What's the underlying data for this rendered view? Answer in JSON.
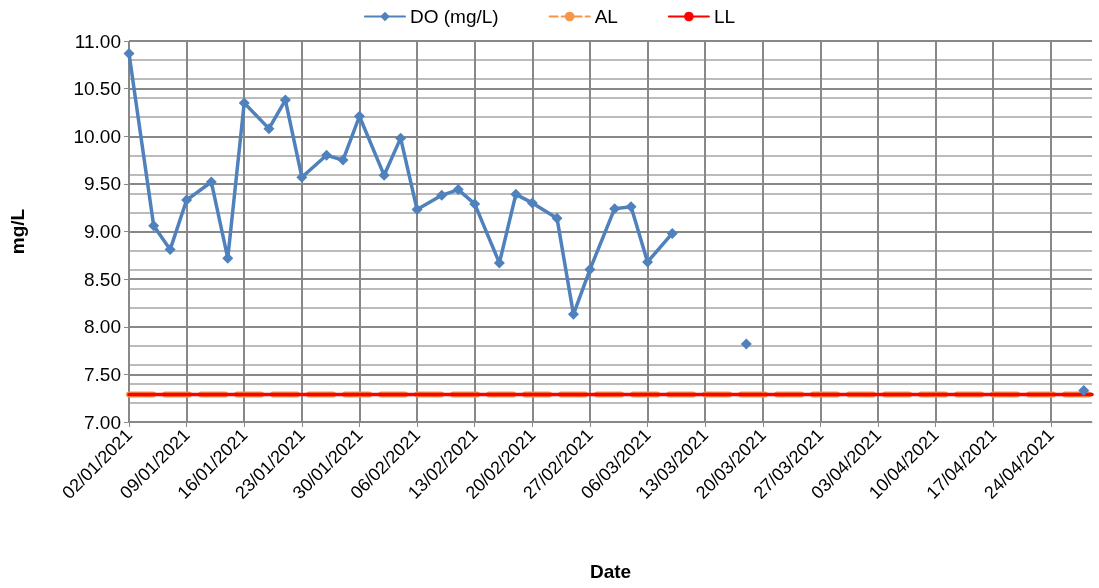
{
  "chart_data": {
    "type": "line",
    "xlabel": "Date",
    "ylabel": "mg/L",
    "legend": "top",
    "grid": true,
    "xlim": [
      "2021-01-02",
      "2021-04-29"
    ],
    "xticks": [
      {
        "value": "2021-01-02",
        "label": "02/01/2021"
      },
      {
        "value": "2021-01-09",
        "label": "09/01/2021"
      },
      {
        "value": "2021-01-16",
        "label": "16/01/2021"
      },
      {
        "value": "2021-01-23",
        "label": "23/01/2021"
      },
      {
        "value": "2021-01-30",
        "label": "30/01/2021"
      },
      {
        "value": "2021-02-06",
        "label": "06/02/2021"
      },
      {
        "value": "2021-02-13",
        "label": "13/02/2021"
      },
      {
        "value": "2021-02-20",
        "label": "20/02/2021"
      },
      {
        "value": "2021-02-27",
        "label": "27/02/2021"
      },
      {
        "value": "2021-03-06",
        "label": "06/03/2021"
      },
      {
        "value": "2021-03-13",
        "label": "13/03/2021"
      },
      {
        "value": "2021-03-20",
        "label": "20/03/2021"
      },
      {
        "value": "2021-03-27",
        "label": "27/03/2021"
      },
      {
        "value": "2021-04-03",
        "label": "03/04/2021"
      },
      {
        "value": "2021-04-10",
        "label": "10/04/2021"
      },
      {
        "value": "2021-04-17",
        "label": "17/04/2021"
      },
      {
        "value": "2021-04-24",
        "label": "24/04/2021"
      }
    ],
    "ylim": [
      7,
      11
    ],
    "yticks": [
      {
        "value": 7,
        "label": "7.00"
      },
      {
        "value": 7.5,
        "label": "7.50"
      },
      {
        "value": 8,
        "label": "8.00"
      },
      {
        "value": 8.5,
        "label": "8.50"
      },
      {
        "value": 9,
        "label": "9.00"
      },
      {
        "value": 9.5,
        "label": "9.50"
      },
      {
        "value": 10,
        "label": "10.00"
      },
      {
        "value": 10.5,
        "label": "10.50"
      },
      {
        "value": 11,
        "label": "11.00"
      }
    ],
    "series": [
      {
        "name": "DO (mg/L)",
        "color": "#4f81bd",
        "marker": "diamond",
        "line_style": "solid",
        "x": [
          "2021-01-02",
          "2021-01-05",
          "2021-01-07",
          "2021-01-09",
          "2021-01-12",
          "2021-01-14",
          "2021-01-16",
          "2021-01-19",
          "2021-01-21",
          "2021-01-23",
          "2021-01-26",
          "2021-01-28",
          "2021-01-30",
          "2021-02-02",
          "2021-02-04",
          "2021-02-06",
          "2021-02-09",
          "2021-02-11",
          "2021-02-13",
          "2021-02-16",
          "2021-02-18",
          "2021-02-20",
          "2021-02-23",
          "2021-02-25",
          "2021-02-27",
          "2021-03-02",
          "2021-03-04",
          "2021-03-06",
          "2021-03-09",
          "2021-03-12",
          "2021-03-18",
          "2021-03-25",
          "2021-04-28"
        ],
        "values": [
          10.87,
          9.06,
          8.81,
          9.33,
          9.52,
          8.72,
          10.35,
          10.08,
          10.38,
          9.57,
          9.8,
          9.75,
          10.21,
          9.59,
          9.98,
          9.23,
          9.38,
          9.44,
          9.29,
          8.67,
          9.39,
          9.3,
          9.14,
          8.13,
          8.6,
          9.24,
          9.26,
          8.68,
          8.98,
          null,
          7.82,
          null,
          7.33
        ]
      },
      {
        "name": "AL",
        "color": "#f79646",
        "marker": "none",
        "line_style": "dashed",
        "x": [
          "2021-01-02",
          "2021-04-29"
        ],
        "values": [
          7.29,
          7.29
        ]
      },
      {
        "name": "LL",
        "color": "#ff0000",
        "marker": "none",
        "line_style": "solid",
        "x": [
          "2021-01-02",
          "2021-04-29"
        ],
        "values": [
          7.29,
          7.29
        ]
      }
    ]
  }
}
